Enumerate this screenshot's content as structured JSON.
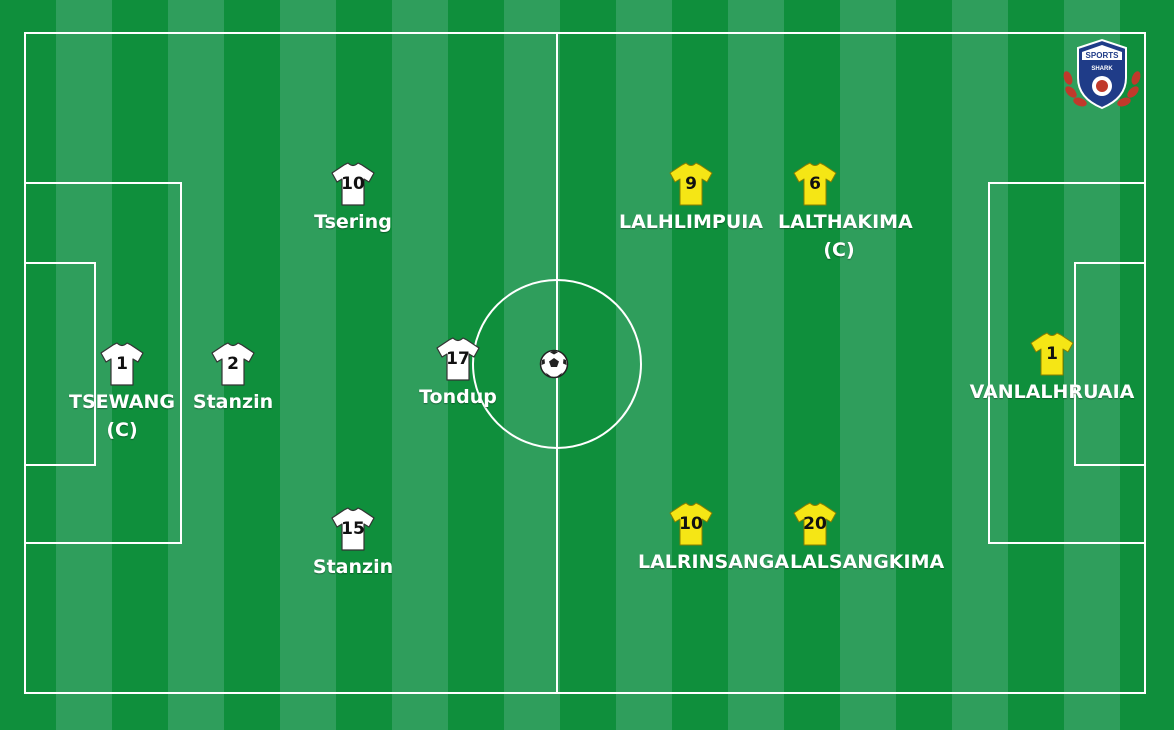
{
  "colors": {
    "stripe_dark": "#0f8f3c",
    "stripe_light": "#2f9e5c",
    "line": "#ffffff",
    "home_shirt": "#ffffff",
    "away_shirt": "#f5e615"
  },
  "logo": {
    "line1": "SPORTS",
    "line2": "SHARK"
  },
  "home_team": {
    "players": [
      {
        "number": "1",
        "name": "TSEWANG",
        "captain_mark": "(C)"
      },
      {
        "number": "2",
        "name": "Stanzin",
        "captain_mark": ""
      },
      {
        "number": "10",
        "name": "Tsering",
        "captain_mark": ""
      },
      {
        "number": "17",
        "name": "Tondup",
        "captain_mark": ""
      },
      {
        "number": "15",
        "name": "Stanzin",
        "captain_mark": ""
      }
    ]
  },
  "away_team": {
    "players": [
      {
        "number": "9",
        "name": "LALHLIMPUIA",
        "captain_mark": ""
      },
      {
        "number": "6",
        "name": "LALTHAKIMA",
        "captain_mark": "(C)"
      },
      {
        "number": "1",
        "name": "VANLALHRUAIA",
        "captain_mark": ""
      },
      {
        "number": "10",
        "name": "LALRINSANGA",
        "captain_mark": ""
      },
      {
        "number": "20",
        "name": "LALSANGKIMA",
        "captain_mark": ""
      }
    ]
  }
}
